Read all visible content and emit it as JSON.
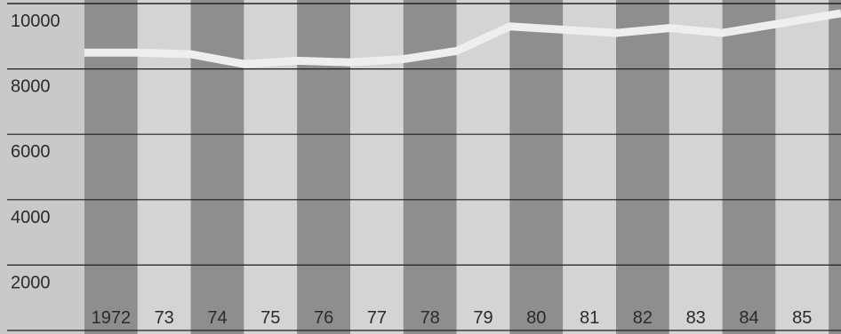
{
  "chart_data": {
    "type": "line",
    "title": "",
    "xlabel": "",
    "ylabel": "",
    "categories": [
      "1972",
      "73",
      "74",
      "75",
      "76",
      "77",
      "78",
      "79",
      "80",
      "81",
      "82",
      "83",
      "84",
      "85"
    ],
    "series": [
      {
        "values": [
          8500,
          8500,
          8450,
          8150,
          8250,
          8200,
          8300,
          8550,
          9300,
          9200,
          9100,
          9250,
          9100,
          9700
        ]
      }
    ],
    "yticks": [
      2000,
      4000,
      6000,
      8000,
      10000
    ],
    "ylim": [
      0,
      10000
    ],
    "grid": true,
    "colors": {
      "background": "#c9c9c9",
      "band_dark": "#8e8e8e",
      "band_light": "#d4d4d4",
      "gridline": "#1e1e1e",
      "line": "#eeeeee",
      "text": "#2b2b2b"
    }
  }
}
